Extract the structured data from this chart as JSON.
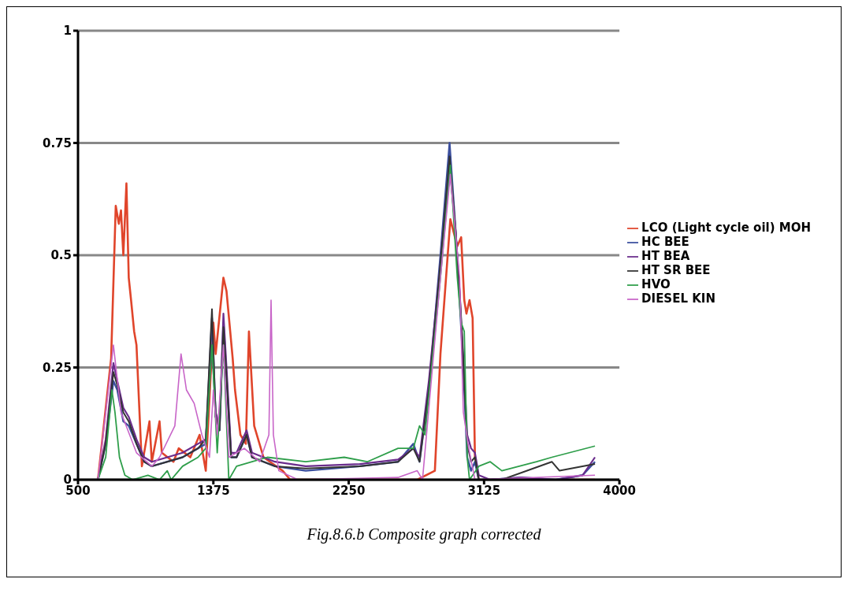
{
  "chart_data": {
    "type": "line",
    "annotations": [
      "Fig.8.6.b   Composite graph corrected"
    ],
    "xlim": [
      500,
      4000
    ],
    "xticks": [
      500,
      1375,
      2250,
      3125,
      4000
    ],
    "ylim": [
      0,
      1
    ],
    "yticks": [
      0,
      0.25,
      0.5,
      0.75,
      1
    ],
    "grid": "y",
    "legend": "right",
    "marker": "none",
    "series": [
      {
        "name": "LCO (Light cycle oil) MOH",
        "color": "#e0452b",
        "x": [
          629,
          714,
          744,
          764,
          778,
          793,
          813,
          828,
          843,
          863,
          878,
          913,
          962,
          977,
          1027,
          1042,
          1117,
          1151,
          1226,
          1286,
          1326,
          1375,
          1390,
          1440,
          1460,
          1500,
          1515,
          1550,
          1585,
          1605,
          1639,
          1699,
          1823,
          1872,
          2693,
          2807,
          2843,
          2907,
          2952,
          2977,
          2997,
          3011,
          3031,
          3051,
          3066,
          3091,
          3842
        ],
        "values": [
          0,
          0.27,
          0.61,
          0.57,
          0.6,
          0.5,
          0.66,
          0.45,
          0.4,
          0.33,
          0.3,
          0.03,
          0.13,
          0.04,
          0.13,
          0.06,
          0.04,
          0.07,
          0.05,
          0.1,
          0.02,
          0.35,
          0.28,
          0.45,
          0.42,
          0.27,
          0.2,
          0.1,
          0.08,
          0.33,
          0.12,
          0.05,
          0.02,
          0,
          0,
          0.02,
          0.28,
          0.58,
          0.52,
          0.54,
          0.4,
          0.37,
          0.4,
          0.36,
          0.05,
          0,
          0
        ]
      },
      {
        "name": "HC BEE",
        "color": "#3b4f9e",
        "x": [
          629,
          679,
          729,
          754,
          793,
          828,
          878,
          928,
          977,
          1077,
          1176,
          1276,
          1326,
          1366,
          1390,
          1415,
          1440,
          1465,
          1490,
          1525,
          1590,
          1625,
          1773,
          1972,
          2321,
          2569,
          2668,
          2708,
          2768,
          2843,
          2902,
          2942,
          2967,
          2991,
          3016,
          3041,
          3066,
          3091,
          3165,
          3364,
          3588,
          3762,
          3842
        ],
        "values": [
          0,
          0.08,
          0.22,
          0.2,
          0.13,
          0.12,
          0.08,
          0.04,
          0.03,
          0.04,
          0.05,
          0.07,
          0.08,
          0.36,
          0.14,
          0.11,
          0.35,
          0.2,
          0.05,
          0.05,
          0.1,
          0.05,
          0.03,
          0.02,
          0.03,
          0.04,
          0.08,
          0.04,
          0.2,
          0.5,
          0.75,
          0.55,
          0.4,
          0.25,
          0.05,
          0.02,
          0.04,
          0,
          0,
          0.005,
          0,
          0.01,
          0.04
        ]
      },
      {
        "name": "HT BEA",
        "color": "#6a2c8c",
        "x": [
          629,
          679,
          729,
          754,
          793,
          828,
          878,
          928,
          977,
          1077,
          1176,
          1276,
          1326,
          1366,
          1390,
          1415,
          1440,
          1465,
          1490,
          1525,
          1590,
          1625,
          1773,
          1972,
          2321,
          2569,
          2668,
          2708,
          2768,
          2843,
          2902,
          2942,
          2967,
          2991,
          3016,
          3041,
          3066,
          3091,
          3165,
          3364,
          3588,
          3762,
          3842
        ],
        "values": [
          0,
          0.09,
          0.26,
          0.22,
          0.16,
          0.14,
          0.09,
          0.05,
          0.04,
          0.05,
          0.06,
          0.08,
          0.09,
          0.3,
          0.15,
          0.12,
          0.37,
          0.22,
          0.06,
          0.06,
          0.11,
          0.06,
          0.04,
          0.03,
          0.035,
          0.045,
          0.07,
          0.05,
          0.22,
          0.48,
          0.7,
          0.55,
          0.42,
          0.27,
          0.1,
          0.07,
          0.06,
          0.01,
          0,
          0.005,
          0,
          0.01,
          0.05
        ]
      },
      {
        "name": "HT SR BEE",
        "color": "#333333",
        "x": [
          629,
          679,
          729,
          754,
          793,
          828,
          878,
          928,
          977,
          1077,
          1176,
          1276,
          1326,
          1366,
          1390,
          1415,
          1440,
          1465,
          1490,
          1525,
          1590,
          1625,
          1773,
          1972,
          2321,
          2569,
          2668,
          2708,
          2768,
          2843,
          2902,
          2942,
          2967,
          2991,
          3016,
          3041,
          3066,
          3091,
          3240,
          3563,
          3613,
          3842
        ],
        "values": [
          0,
          0.08,
          0.24,
          0.21,
          0.15,
          0.13,
          0.08,
          0.04,
          0.03,
          0.04,
          0.05,
          0.07,
          0.09,
          0.38,
          0.14,
          0.11,
          0.34,
          0.2,
          0.05,
          0.05,
          0.1,
          0.05,
          0.03,
          0.025,
          0.03,
          0.04,
          0.07,
          0.04,
          0.2,
          0.48,
          0.72,
          0.55,
          0.42,
          0.26,
          0.08,
          0.04,
          0.05,
          0,
          0,
          0.04,
          0.02,
          0.035
        ]
      },
      {
        "name": "HVO",
        "color": "#2e9e4a",
        "x": [
          629,
          679,
          719,
          739,
          768,
          803,
          853,
          952,
          1027,
          1077,
          1102,
          1176,
          1276,
          1326,
          1366,
          1400,
          1440,
          1475,
          1525,
          1625,
          1724,
          1972,
          2221,
          2370,
          2569,
          2668,
          2708,
          2743,
          2843,
          2907,
          2952,
          2977,
          2997,
          3016,
          3031,
          3091,
          3165,
          3240,
          3464,
          3563,
          3842
        ],
        "values": [
          0,
          0.05,
          0.2,
          0.15,
          0.05,
          0.01,
          0,
          0.01,
          0,
          0.02,
          0,
          0.03,
          0.05,
          0.07,
          0.3,
          0.06,
          0.3,
          0,
          0.03,
          0.04,
          0.05,
          0.04,
          0.05,
          0.04,
          0.07,
          0.07,
          0.12,
          0.1,
          0.45,
          0.7,
          0.45,
          0.35,
          0.33,
          0.05,
          0,
          0.03,
          0.04,
          0.02,
          0.04,
          0.05,
          0.075
        ]
      },
      {
        "name": "DIESEL KIN",
        "color": "#c865c8",
        "x": [
          629,
          729,
          778,
          878,
          977,
          1027,
          1126,
          1166,
          1201,
          1251,
          1301,
          1350,
          1375,
          1400,
          1440,
          1475,
          1575,
          1674,
          1734,
          1748,
          1763,
          1798,
          1922,
          2569,
          2693,
          2727,
          2843,
          2907,
          2967,
          2991,
          3026,
          3066,
          3842
        ],
        "values": [
          0,
          0.3,
          0.15,
          0.06,
          0.03,
          0.05,
          0.12,
          0.28,
          0.2,
          0.17,
          0.1,
          0.05,
          0.2,
          0.1,
          0.3,
          0.05,
          0.07,
          0.04,
          0.1,
          0.4,
          0.1,
          0.02,
          0,
          0.005,
          0.02,
          0,
          0.45,
          0.68,
          0.45,
          0.15,
          0.07,
          0,
          0.01
        ]
      }
    ]
  }
}
